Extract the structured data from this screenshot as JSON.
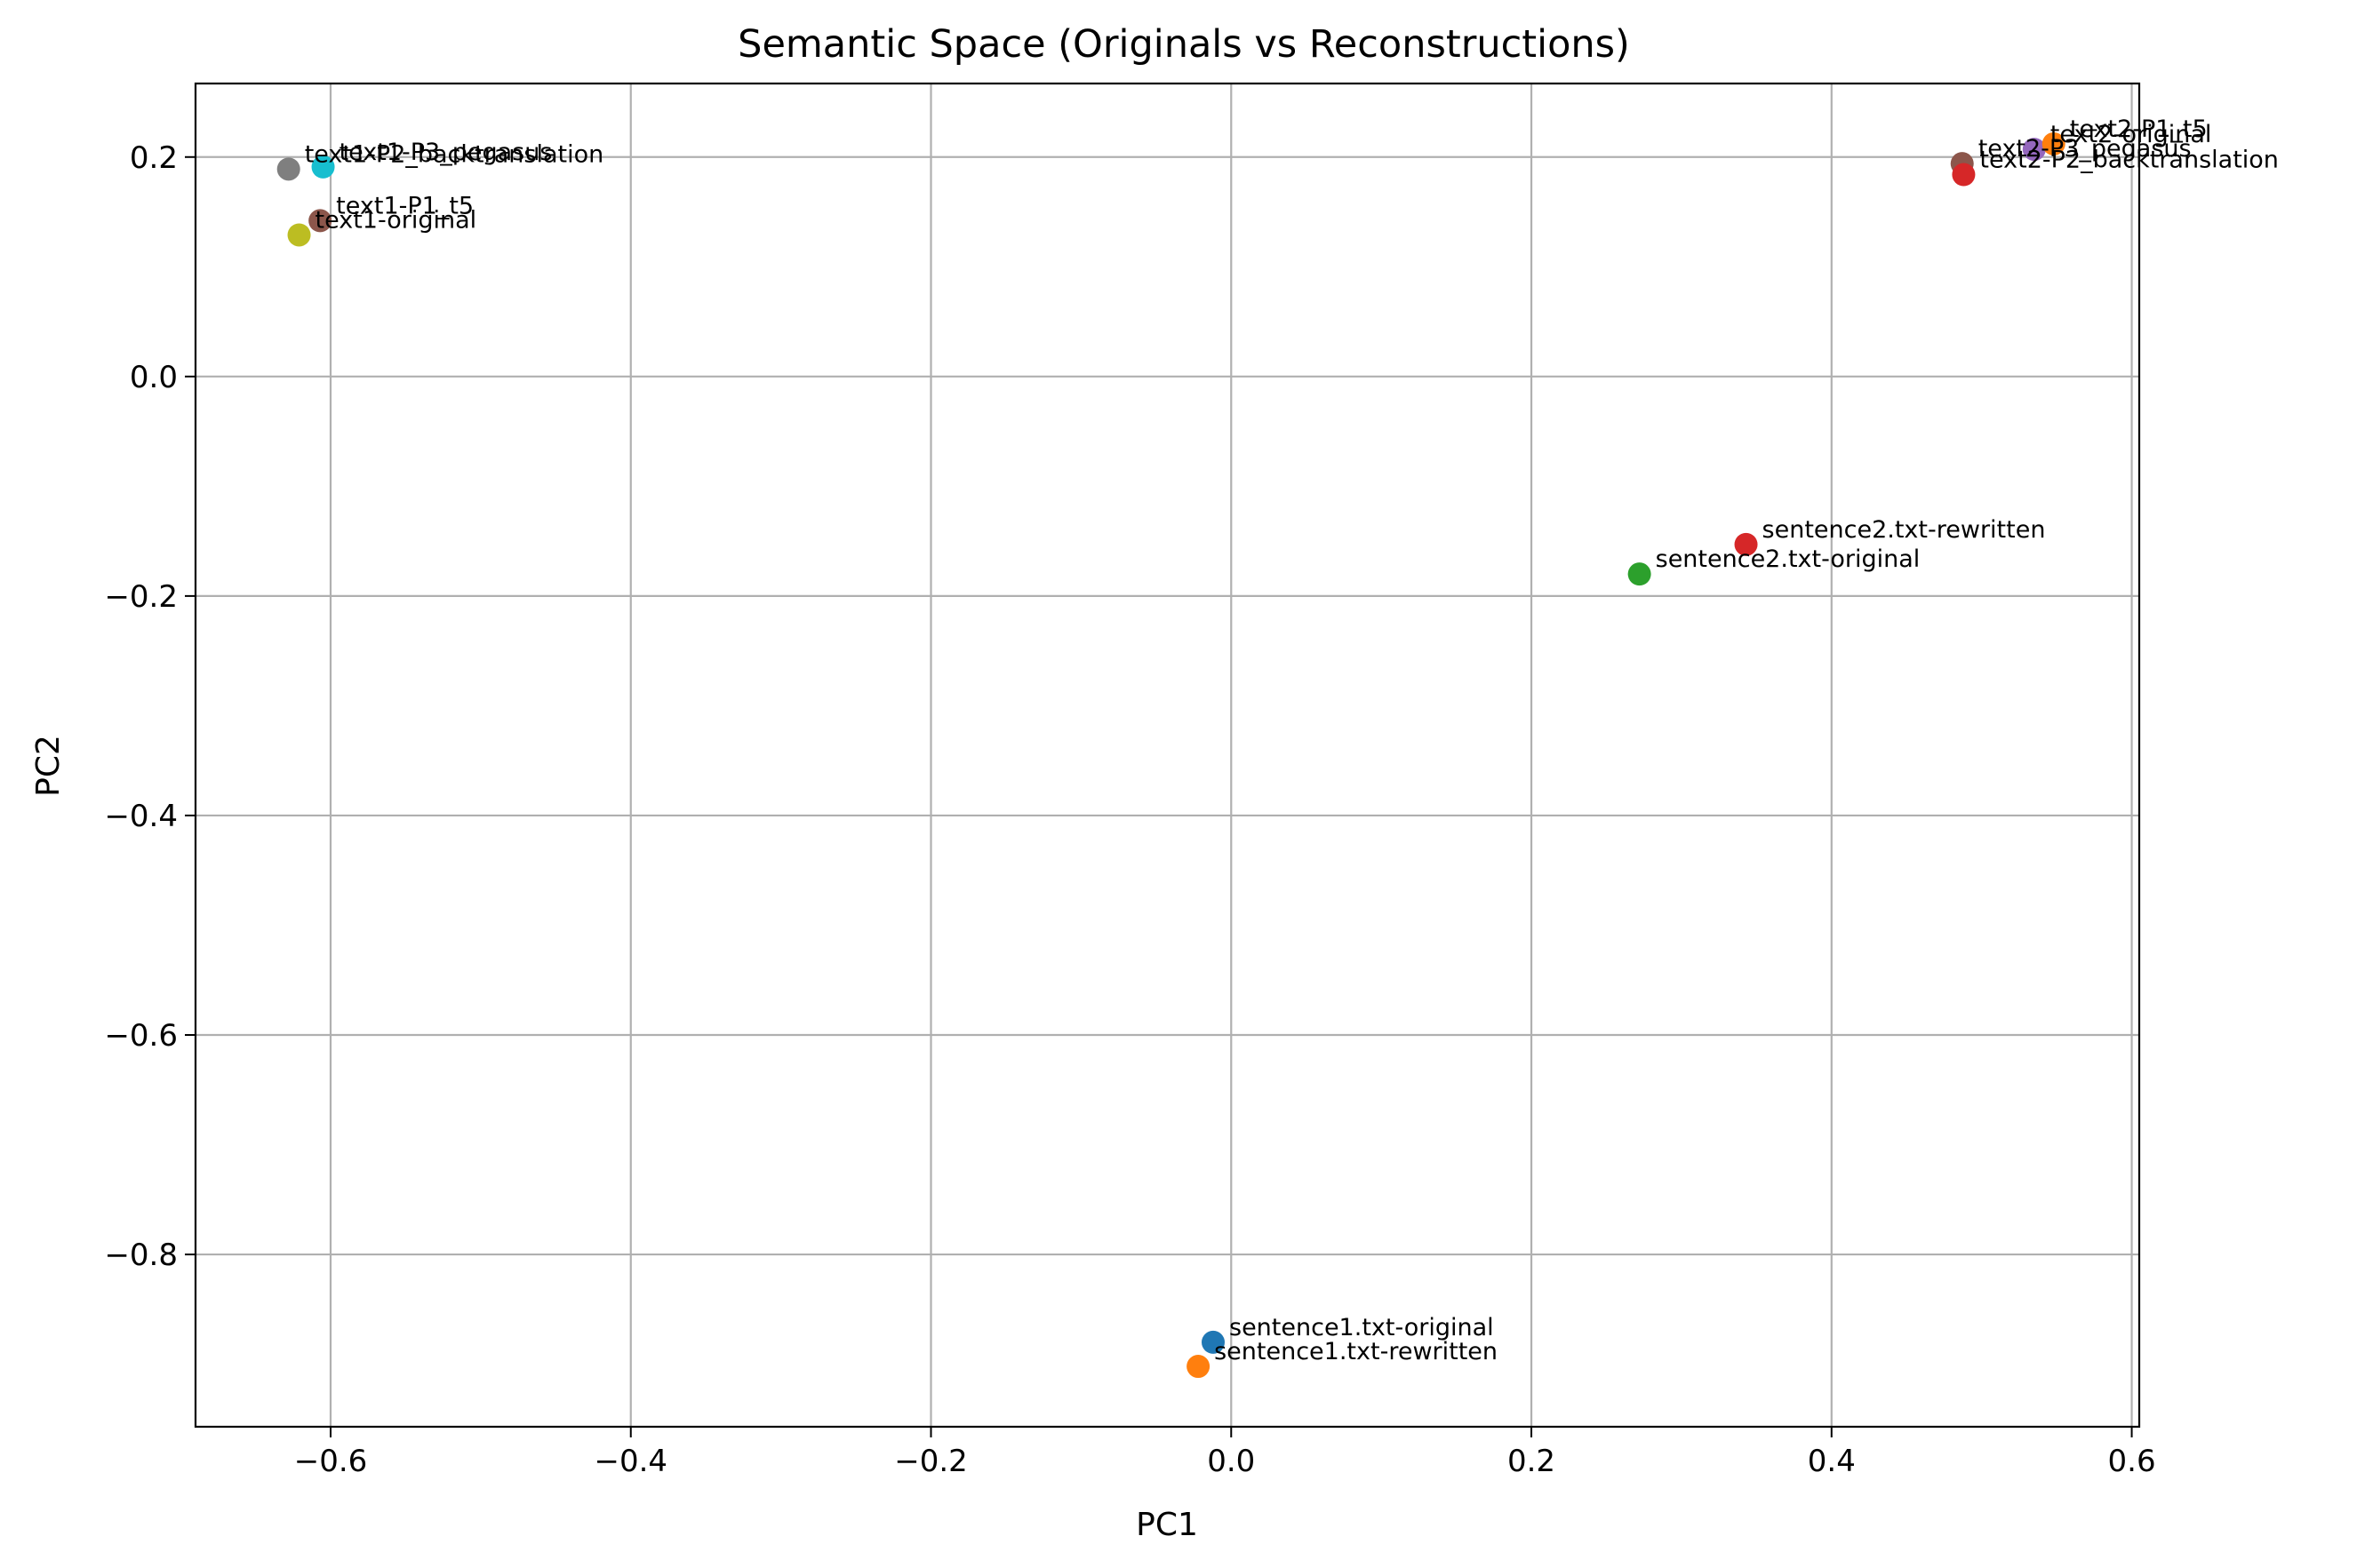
{
  "chart_data": {
    "type": "scatter",
    "title": "Semantic Space (Originals vs Reconstructions)",
    "xlabel": "PC1",
    "ylabel": "PC2",
    "xlim": [
      -0.69,
      0.605
    ],
    "ylim": [
      -0.957,
      0.267
    ],
    "grid": true,
    "xticks": [
      -0.6,
      -0.4,
      -0.2,
      0.0,
      0.2,
      0.4,
      0.6
    ],
    "xtick_labels": [
      "−0.6",
      "−0.4",
      "−0.2",
      "0.0",
      "0.2",
      "0.4",
      "0.6"
    ],
    "yticks": [
      0.2,
      0.0,
      -0.2,
      -0.4,
      -0.6,
      -0.8
    ],
    "ytick_labels": [
      "0.2",
      "0.0",
      "−0.2",
      "−0.4",
      "−0.6",
      "−0.8"
    ],
    "points": [
      {
        "label": "sentence1.txt-original",
        "x": -0.012,
        "y": -0.88,
        "color": "#1f77b4"
      },
      {
        "label": "sentence1.txt-rewritten",
        "x": -0.022,
        "y": -0.902,
        "color": "#ff7f0e"
      },
      {
        "label": "sentence2.txt-original",
        "x": 0.272,
        "y": -0.18,
        "color": "#2ca02c"
      },
      {
        "label": "sentence2.txt-rewritten",
        "x": 0.343,
        "y": -0.153,
        "color": "#d62728"
      },
      {
        "label": "text2-original",
        "x": 0.535,
        "y": 0.207,
        "color": "#9467bd"
      },
      {
        "label": "text2-P3_pegasus",
        "x": 0.487,
        "y": 0.194,
        "color": "#8c564b"
      },
      {
        "label": "text2-P1_t5",
        "x": 0.548,
        "y": 0.212,
        "color": "#ff7f0e"
      },
      {
        "label": "text2-P2_backtranslation",
        "x": 0.488,
        "y": 0.184,
        "color": "#d62728"
      },
      {
        "label": "text1-P3_pegasus",
        "x": -0.605,
        "y": 0.191,
        "color": "#17becf"
      },
      {
        "label": "text1-P2_backtranslation",
        "x": -0.628,
        "y": 0.189,
        "color": "#7f7f7f"
      },
      {
        "label": "text1-P1_t5",
        "x": -0.607,
        "y": 0.142,
        "color": "#8c564b"
      },
      {
        "label": "text1-original",
        "x": -0.621,
        "y": 0.129,
        "color": "#bcbd22"
      }
    ]
  }
}
